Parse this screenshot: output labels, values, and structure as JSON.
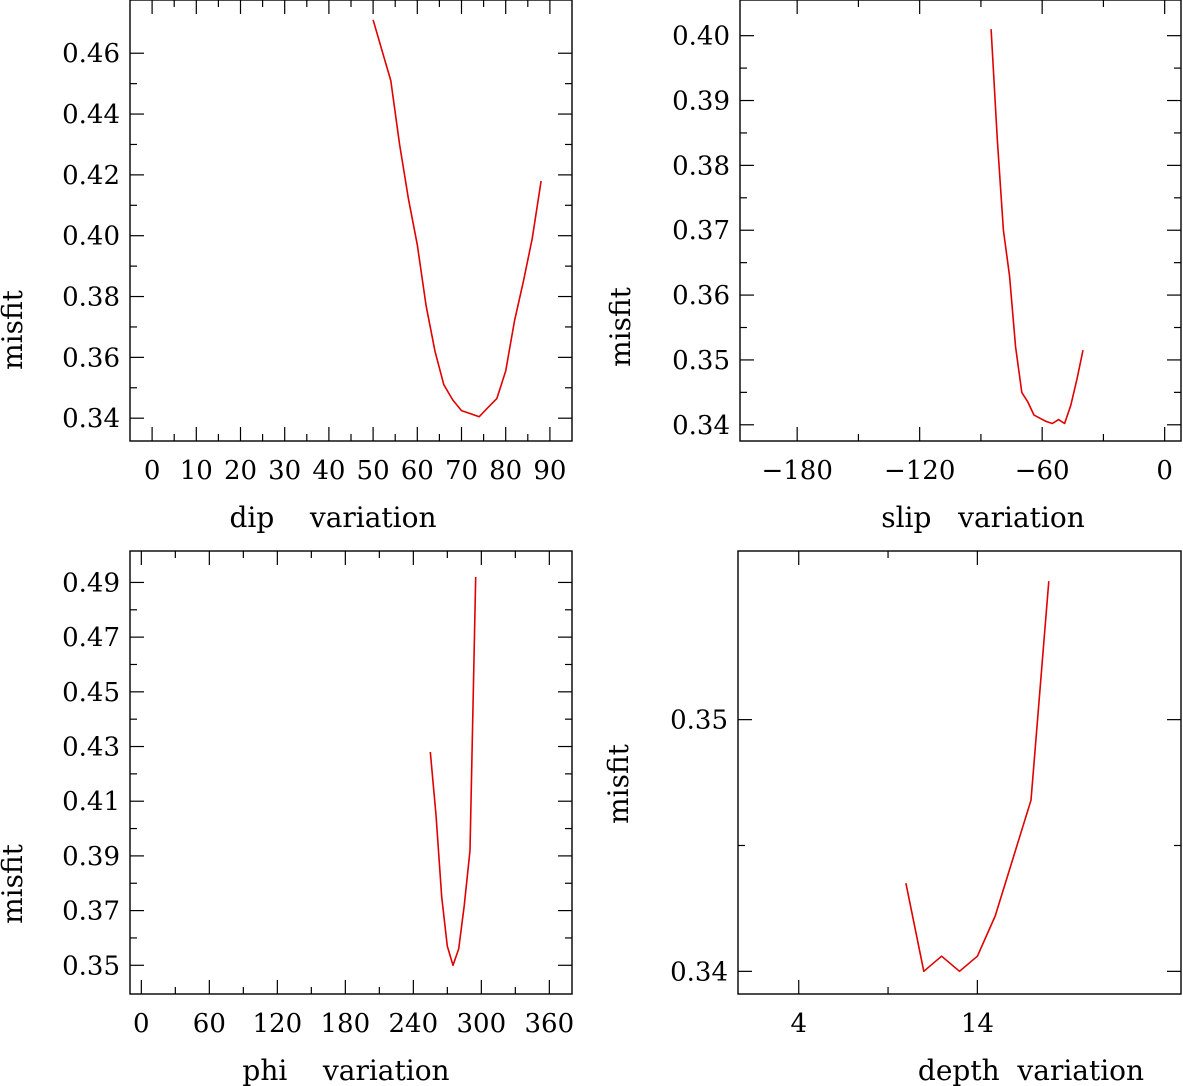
{
  "chart_data": [
    {
      "type": "line",
      "id": "dip",
      "xlabel": "dip    variation",
      "ylabel": "misfit",
      "xlim": [
        -5,
        95
      ],
      "ylim": [
        0.3325,
        0.4775
      ],
      "xticks": [
        0,
        10,
        20,
        30,
        40,
        50,
        60,
        70,
        80,
        90
      ],
      "yticks": [
        0.34,
        0.36,
        0.38,
        0.4,
        0.42,
        0.44,
        0.46
      ],
      "xtick_labels": [
        "0",
        "10",
        "20",
        "30",
        "40",
        "50",
        "60",
        "70",
        "80",
        "90"
      ],
      "ytick_labels": [
        "0.34",
        "0.36",
        "0.38",
        "0.40",
        "0.42",
        "0.44",
        "0.46"
      ],
      "color": "#e00000",
      "x": [
        50,
        52,
        54,
        56,
        58,
        60,
        62,
        64,
        66,
        68,
        70,
        72,
        74,
        76,
        78,
        80,
        82,
        84,
        86,
        88
      ],
      "y": [
        0.471,
        0.461,
        0.451,
        0.43,
        0.412,
        0.397,
        0.377,
        0.362,
        0.351,
        0.346,
        0.3425,
        0.3415,
        0.3405,
        0.3435,
        0.3465,
        0.3555,
        0.372,
        0.385,
        0.399,
        0.418
      ]
    },
    {
      "type": "line",
      "id": "slip",
      "xlabel": "slip   variation",
      "ylabel": "misfit",
      "xlim": [
        -208,
        8
      ],
      "ylim": [
        0.3375,
        0.4055
      ],
      "xticks": [
        -180,
        -120,
        -60,
        0
      ],
      "yticks": [
        0.34,
        0.35,
        0.36,
        0.37,
        0.38,
        0.39,
        0.4
      ],
      "xtick_labels": [
        "−180",
        "−120",
        "−60",
        "0"
      ],
      "ytick_labels": [
        "0.34",
        "0.35",
        "0.36",
        "0.37",
        "0.38",
        "0.39",
        "0.40"
      ],
      "color": "#e00000",
      "x": [
        -85,
        -82,
        -79,
        -76,
        -73,
        -70,
        -67,
        -64,
        -61,
        -58,
        -55,
        -52,
        -49,
        -46,
        -43,
        -40
      ],
      "y": [
        0.401,
        0.384,
        0.37,
        0.363,
        0.352,
        0.345,
        0.3435,
        0.3415,
        0.341,
        0.3405,
        0.3402,
        0.3408,
        0.3402,
        0.343,
        0.347,
        0.3515
      ]
    },
    {
      "type": "line",
      "id": "phi",
      "xlabel": "phi    variation",
      "ylabel": "misfit",
      "xlim": [
        -10,
        380
      ],
      "ylim": [
        0.3395,
        0.5015
      ],
      "xticks": [
        0,
        60,
        120,
        180,
        240,
        300,
        360
      ],
      "yticks": [
        0.35,
        0.37,
        0.39,
        0.41,
        0.43,
        0.45,
        0.47,
        0.49
      ],
      "xtick_labels": [
        "0",
        "60",
        "120",
        "180",
        "240",
        "300",
        "360"
      ],
      "ytick_labels": [
        "0.35",
        "0.37",
        "0.39",
        "0.41",
        "0.43",
        "0.45",
        "0.47",
        "0.49"
      ],
      "color": "#e00000",
      "x": [
        255,
        260,
        265,
        270,
        275,
        280,
        285,
        290,
        295
      ],
      "y": [
        0.428,
        0.405,
        0.375,
        0.357,
        0.35,
        0.356,
        0.372,
        0.392,
        0.492
      ]
    },
    {
      "type": "line",
      "id": "depth",
      "xlabel": "depth  variation",
      "ylabel": "misfit",
      "xlim": [
        0.6,
        25.4
      ],
      "ylim": [
        0.3391,
        0.3567
      ],
      "xticks": [
        4,
        14
      ],
      "yticks": [
        0.34,
        0.35
      ],
      "xtick_labels": [
        "4",
        "14"
      ],
      "ytick_labels": [
        "0.34",
        "0.35"
      ],
      "color": "#e00000",
      "x": [
        10,
        11,
        12,
        13,
        14,
        15,
        16,
        17,
        18
      ],
      "y": [
        0.3435,
        0.34,
        0.3406,
        0.34,
        0.3406,
        0.3422,
        0.3445,
        0.3468,
        0.3555
      ]
    }
  ]
}
